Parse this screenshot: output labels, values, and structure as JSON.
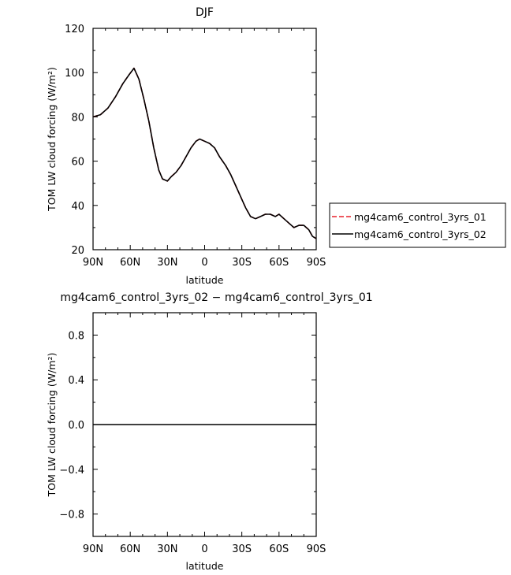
{
  "chart_data": [
    {
      "type": "line",
      "title": "DJF",
      "xlabel": "latitude",
      "ylabel": "TOM LW cloud forcing (W/m²)",
      "xlim": [
        90,
        -90
      ],
      "ylim": [
        20,
        120
      ],
      "xticks": [
        90,
        60,
        30,
        0,
        -30,
        -60,
        -90
      ],
      "xtick_labels": [
        "90N",
        "60N",
        "30N",
        "0",
        "30S",
        "60S",
        "90S"
      ],
      "yticks": [
        20,
        40,
        60,
        80,
        100,
        120
      ],
      "ytick_labels": [
        "20",
        "40",
        "60",
        "80",
        "100",
        "120"
      ],
      "grid": false,
      "legend_position": "right",
      "x": [
        90,
        84,
        78,
        72,
        66,
        61,
        57,
        53,
        49,
        45,
        41,
        37,
        34,
        30,
        27,
        23,
        19,
        15,
        11,
        7,
        4,
        0,
        -4,
        -8,
        -12,
        -17,
        -21,
        -25,
        -29,
        -33,
        -37,
        -41,
        -45,
        -49,
        -53,
        -57,
        -60,
        -64,
        -68,
        -72,
        -76,
        -80,
        -84,
        -87,
        -90
      ],
      "series": [
        {
          "name": "mg4cam6_control_3yrs_01",
          "color": "#e8202a",
          "dash": "dashed",
          "values": [
            80,
            81,
            84,
            89,
            95,
            99,
            102,
            97,
            88,
            78,
            66,
            56,
            52,
            51,
            53,
            55,
            58,
            62,
            66,
            69,
            70,
            69,
            68,
            66,
            62,
            58,
            54,
            49,
            44,
            39,
            35,
            34,
            35,
            36,
            36,
            35,
            36,
            34,
            32,
            30,
            31,
            31,
            29,
            26,
            25
          ]
        },
        {
          "name": "mg4cam6_control_3yrs_02",
          "color": "#000000",
          "dash": "solid",
          "values": [
            80,
            81,
            84,
            89,
            95,
            99,
            102,
            97,
            88,
            78,
            66,
            56,
            52,
            51,
            53,
            55,
            58,
            62,
            66,
            69,
            70,
            69,
            68,
            66,
            62,
            58,
            54,
            49,
            44,
            39,
            35,
            34,
            35,
            36,
            36,
            35,
            36,
            34,
            32,
            30,
            31,
            31,
            29,
            26,
            25
          ]
        }
      ]
    },
    {
      "type": "line",
      "title": "mg4cam6_control_3yrs_02 − mg4cam6_control_3yrs_01",
      "xlabel": "latitude",
      "ylabel": "TOM LW cloud forcing (W/m²)",
      "xlim": [
        90,
        -90
      ],
      "ylim": [
        -1,
        1
      ],
      "xticks": [
        90,
        60,
        30,
        0,
        -30,
        -60,
        -90
      ],
      "xtick_labels": [
        "90N",
        "60N",
        "30N",
        "0",
        "30S",
        "60S",
        "90S"
      ],
      "yticks": [
        -0.8,
        -0.4,
        0.0,
        0.4,
        0.8
      ],
      "ytick_labels": [
        "−0.8",
        "−0.4",
        "0.0",
        "0.4",
        "0.8"
      ],
      "grid": false,
      "x": [
        90,
        -90
      ],
      "series": [
        {
          "color": "#000000",
          "dash": "solid",
          "values": [
            0,
            0
          ]
        }
      ]
    }
  ]
}
